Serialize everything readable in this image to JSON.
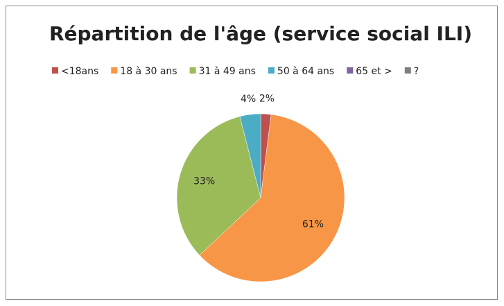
{
  "chart_data": {
    "type": "pie",
    "title": "Répartition de l'âge (service social ILI)",
    "categories": [
      "<18ans",
      "18 à 30 ans",
      "31 à 49 ans",
      "50 à 64 ans",
      "65 et >",
      "?"
    ],
    "values": [
      2,
      61,
      33,
      4,
      0,
      0
    ],
    "value_labels": [
      "2%",
      "61%",
      "33%",
      "4%",
      null,
      null
    ],
    "colors": [
      "#c0504d",
      "#f79646",
      "#9bbb59",
      "#4bacc6",
      "#8064a2",
      "#7f7f7f"
    ],
    "legend": "top"
  }
}
